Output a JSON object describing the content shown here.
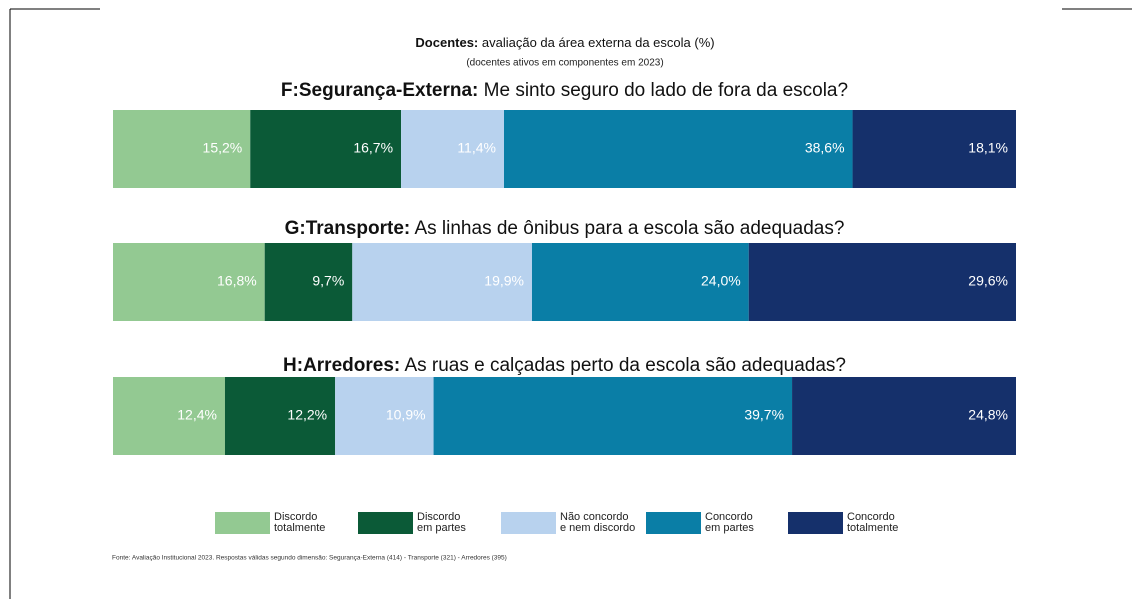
{
  "chart_data": {
    "type": "stacked_bar_horizontal",
    "title_bold": "Docentes:",
    "title": "avaliação da área externa da escola (%)",
    "subtitle": "(docentes ativos em componentes em 2023)",
    "categories": [
      {
        "label": "F:Segurança-Externa:",
        "question": "Me sinto seguro do lado de fora da escola?"
      },
      {
        "label": "G:Transporte:",
        "question": "As linhas de ônibus para a escola são adequadas?"
      },
      {
        "label": "H:Arredores:",
        "question": "As ruas e calçadas perto da escola são adequadas?"
      }
    ],
    "xlim": [
      0,
      100
    ],
    "series": [
      {
        "name": "Discordo\ntotalmente",
        "color": "#93c992",
        "values": [
          15.2,
          16.8,
          12.4
        ],
        "value_labels": [
          "15,2%",
          "16,8%",
          "12,4%"
        ]
      },
      {
        "name": "Discordo\nem partes",
        "color": "#0b5a37",
        "values": [
          16.7,
          9.7,
          12.2
        ],
        "value_labels": [
          "16,7%",
          "9,7%",
          "12,2%"
        ]
      },
      {
        "name": "Não concordo\ne nem discordo",
        "color": "#b8d2ee",
        "values": [
          11.4,
          19.9,
          10.9
        ],
        "value_labels": [
          "11,4%",
          "19,9%",
          "10,9%"
        ]
      },
      {
        "name": "Concordo\nem partes",
        "color": "#0a7ea6",
        "values": [
          38.6,
          24.0,
          39.7
        ],
        "value_labels": [
          "38,6%",
          "24,0%",
          "39,7%"
        ]
      },
      {
        "name": "Concordo\ntotalmente",
        "color": "#15306b",
        "values": [
          18.1,
          29.6,
          24.8
        ],
        "value_labels": [
          "18,1%",
          "29,6%",
          "24,8%"
        ]
      }
    ],
    "source": "Fonte: Avaliação Institucional 2023. Respostas válidas segundo dimensão: Segurança-Externa (414) - Transporte (321) - Arredores (395)"
  }
}
